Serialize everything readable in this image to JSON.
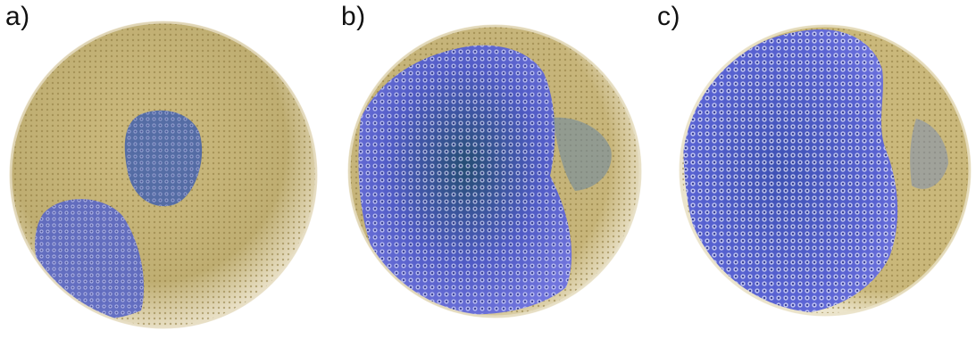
{
  "panels": [
    {
      "label": "a)",
      "blue_fraction": 0.28
    },
    {
      "label": "b)",
      "blue_fraction": 0.65
    },
    {
      "label": "c)",
      "blue_fraction": 0.8
    }
  ],
  "colors": {
    "gold": "#c9b77a",
    "gold_dark": "#a08c4f",
    "blue": "#5a5fd6",
    "blue_dark": "#2f3a8c",
    "teal": "#3f6e8e",
    "background": "#ffffff"
  }
}
